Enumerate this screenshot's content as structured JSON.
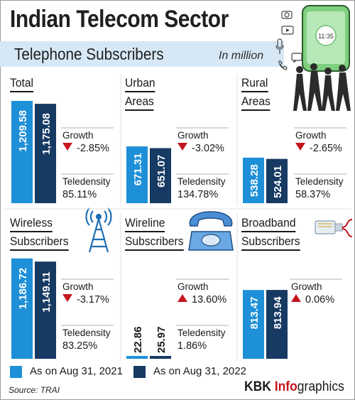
{
  "header": {
    "title": "Indian Telecom Sector",
    "subtitle": "Telephone Subscribers",
    "unit": "In million"
  },
  "labels": {
    "growth": "Growth",
    "teledensity": "Teledensity"
  },
  "colors": {
    "series_2021": "#1e90d8",
    "series_2022": "#173a63",
    "down_arrow": "#c4161c",
    "up_arrow": "#c4161c",
    "subtitle_band": "#d6e8f6"
  },
  "chart_data": [
    {
      "type": "bar",
      "title_lines": [
        "Total"
      ],
      "categories": [
        "As on Aug 31, 2021",
        "As on Aug 31, 2022"
      ],
      "values": [
        1209.58,
        1175.08
      ],
      "value_labels": [
        "1,209.58",
        "1,175.08"
      ],
      "growth": "-2.85%",
      "growth_direction": "down",
      "teledensity": "85.11%"
    },
    {
      "type": "bar",
      "title_lines": [
        "Urban",
        "Areas"
      ],
      "categories": [
        "As on Aug 31, 2021",
        "As on Aug 31, 2022"
      ],
      "values": [
        671.31,
        651.07
      ],
      "value_labels": [
        "671.31",
        "651.07"
      ],
      "growth": "-3.02%",
      "growth_direction": "down",
      "teledensity": "134.78%"
    },
    {
      "type": "bar",
      "title_lines": [
        "Rural",
        "Areas"
      ],
      "categories": [
        "As on Aug 31, 2021",
        "As on Aug 31, 2022"
      ],
      "values": [
        538.28,
        524.01
      ],
      "value_labels": [
        "538.28",
        "524.01"
      ],
      "growth": "-2.65%",
      "growth_direction": "down",
      "teledensity": "58.37%"
    },
    {
      "type": "bar",
      "title_lines": [
        "Wireless",
        "Subscribers"
      ],
      "categories": [
        "As on Aug 31, 2021",
        "As on Aug 31, 2022"
      ],
      "values": [
        1186.72,
        1149.11
      ],
      "value_labels": [
        "1,186.72",
        "1,149.11"
      ],
      "growth": "-3.17%",
      "growth_direction": "down",
      "teledensity": "83.25%"
    },
    {
      "type": "bar",
      "title_lines": [
        "Wireline",
        "Subscribers"
      ],
      "categories": [
        "As on Aug 31, 2021",
        "As on Aug 31, 2022"
      ],
      "values": [
        22.86,
        25.97
      ],
      "value_labels": [
        "22.86",
        "25.97"
      ],
      "growth": "13.60%",
      "growth_direction": "up",
      "teledensity": "1.86%"
    },
    {
      "type": "bar",
      "title_lines": [
        "Broadband",
        "Subscribers"
      ],
      "categories": [
        "As on Aug 31, 2021",
        "As on Aug 31, 2022"
      ],
      "values": [
        813.47,
        813.94
      ],
      "value_labels": [
        "813.47",
        "813.94"
      ],
      "growth": "0.06%",
      "growth_direction": "up",
      "teledensity": null
    }
  ],
  "legend": [
    {
      "label": "As on Aug 31, 2021",
      "color": "#1e90d8"
    },
    {
      "label": "As on Aug 31, 2022",
      "color": "#173a63"
    }
  ],
  "footer": {
    "source": "Source: TRAI",
    "brand_prefix": "KBK ",
    "brand_highlight": "Info",
    "brand_suffix": "graphics"
  }
}
